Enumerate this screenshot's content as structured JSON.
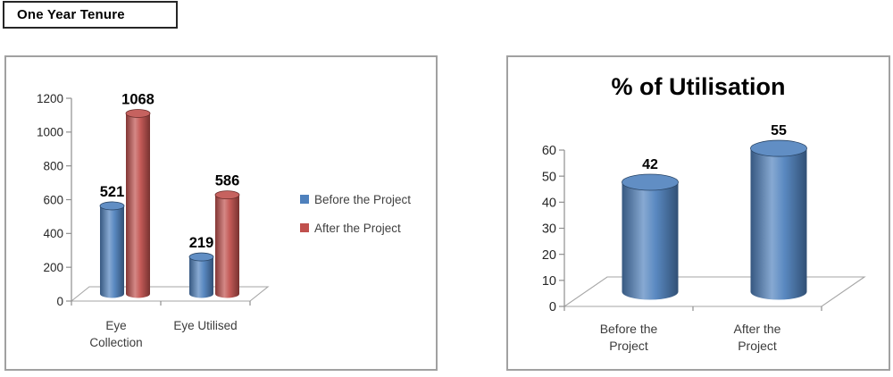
{
  "header": {
    "title": "One Year Tenure"
  },
  "theme": {
    "series_blue": "#4F81BD",
    "series_red": "#C0504D",
    "axis_color": "#8F8F8F",
    "floor_color": "#A6A6A6",
    "tick_label_color": "#262626",
    "category_label_color": "#3B3B3B",
    "legend_label_color": "#404040",
    "value_label_color": "#000000",
    "panel_border": "#A1A1A1"
  },
  "chart_data": [
    {
      "type": "bar",
      "style": "3d-cylinder",
      "title": "",
      "categories": [
        "Eye Collection",
        "Eye Utilised"
      ],
      "series": [
        {
          "name": "Before the Project",
          "color": "#4F81BD",
          "values": [
            521,
            219
          ]
        },
        {
          "name": "After the Project",
          "color": "#C0504D",
          "values": [
            1068,
            586
          ]
        }
      ],
      "ylim": [
        0,
        1200
      ],
      "ytick_step": 200,
      "grid": false,
      "legend_position": "right",
      "data_labels": true
    },
    {
      "type": "bar",
      "style": "3d-cylinder",
      "title": "% of Utilisation",
      "categories": [
        "Before the Project",
        "After the Project"
      ],
      "series": [
        {
          "name": "",
          "color": "#4F81BD",
          "values": [
            42,
            55
          ]
        }
      ],
      "ylim": [
        0,
        60
      ],
      "ytick_step": 10,
      "grid": false,
      "legend_position": "none",
      "data_labels": true
    }
  ]
}
